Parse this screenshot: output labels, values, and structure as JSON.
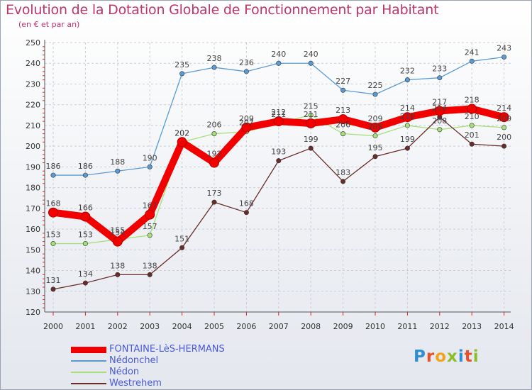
{
  "title": "Evolution de la Dotation Globale de Fonctionnement par Habitant",
  "subtitle": "(en € et par an)",
  "logo": {
    "text": "Proxiti",
    "letters": [
      {
        "ch": "P",
        "color": "#2d8fd1"
      },
      {
        "ch": "r",
        "color": "#e8502a"
      },
      {
        "ch": "o",
        "color": "#f2a21c"
      },
      {
        "ch": "x",
        "color": "#8cbf26"
      },
      {
        "ch": "i",
        "color": "#2d8fd1"
      },
      {
        "ch": "t",
        "color": "#e8502a"
      },
      {
        "ch": "i",
        "color": "#8cbf26"
      }
    ]
  },
  "chart_data": {
    "type": "line",
    "title": "Evolution de la Dotation Globale de Fonctionnement par Habitant",
    "subtitle": "(en € et par an)",
    "xlabel": "",
    "ylabel": "",
    "x": [
      2000,
      2001,
      2002,
      2003,
      2004,
      2005,
      2006,
      2007,
      2008,
      2009,
      2010,
      2011,
      2012,
      2013,
      2014
    ],
    "ylim": [
      120,
      250
    ],
    "yticks": [
      120,
      130,
      140,
      150,
      160,
      170,
      180,
      190,
      200,
      210,
      220,
      230,
      240,
      250
    ],
    "grid": true,
    "legend": "bottom-left",
    "series": [
      {
        "name": "Nédonchel",
        "color": "#5b9bd5",
        "values": [
          186,
          186,
          188,
          190,
          235,
          238,
          236,
          240,
          240,
          227,
          225,
          232,
          233,
          241,
          243
        ]
      },
      {
        "name": "Nédon",
        "color": "#a6e07a",
        "values": [
          153,
          153,
          155,
          157,
          202,
          206,
          207,
          211,
          215,
          206,
          205,
          210,
          208,
          210,
          209
        ]
      },
      {
        "name": "Westrehem",
        "color": "#6a2b2b",
        "values": [
          131,
          134,
          138,
          138,
          151,
          173,
          168,
          193,
          199,
          183,
          195,
          199,
          214,
          201,
          200
        ]
      },
      {
        "name": "FONTAINE-LèS-HERMANS",
        "color": "#f20000",
        "values": [
          168,
          166,
          154,
          167,
          202,
          192,
          209,
          212,
          211,
          213,
          209,
          214,
          217,
          218,
          214
        ]
      }
    ],
    "legend_order": [
      "FONTAINE-LèS-HERMANS",
      "Nédonchel",
      "Nédon",
      "Westrehem"
    ]
  }
}
